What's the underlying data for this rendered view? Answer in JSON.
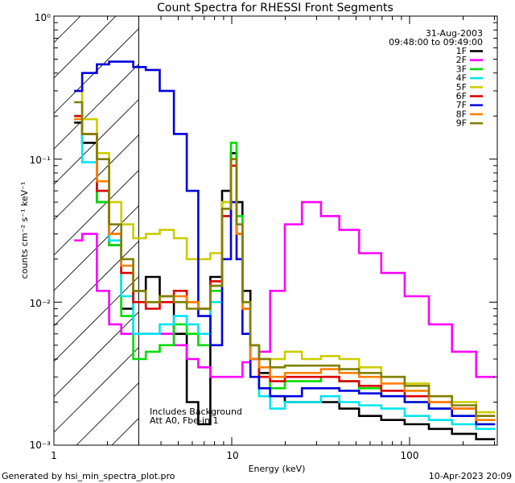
{
  "chart_data": {
    "type": "line",
    "title": "Count Spectra for RHESSI Front Segments",
    "xlabel": "Energy (keV)",
    "ylabel": "counts cm⁻² s⁻¹ keV⁻¹",
    "xscale": "log",
    "yscale": "log",
    "xlim": [
      1.2,
      300
    ],
    "ylim": [
      0.001,
      1.0
    ],
    "x_tick_labels": [
      "1",
      "10",
      "100"
    ],
    "y_tick_labels": [
      "10⁻³",
      "10⁻²",
      "10⁻¹",
      "10⁰"
    ],
    "date": "31-Aug-2003",
    "time_range": "09:48:00 to 09:49:00",
    "annotation_line1": "Includes Background",
    "annotation_line2": "Att A0, Fbe-in 1",
    "hatched_region_keV": [
      1.2,
      3.0
    ],
    "series": [
      {
        "name": "1F",
        "color": "#000000",
        "x": [
          1.3,
          1.6,
          1.9,
          2.2,
          2.6,
          3.0,
          3.6,
          4.3,
          5.2,
          6.0,
          7.0,
          8.2,
          9.5,
          10.3,
          11.0,
          12.0,
          13.5,
          15.0,
          18.0,
          22.0,
          28.0,
          36.0,
          45.0,
          60.0,
          80.0,
          110.0,
          150.0,
          200.0,
          280.0
        ],
        "values": [
          0.18,
          0.13,
          0.05,
          0.025,
          0.009,
          0.012,
          0.015,
          0.011,
          0.006,
          0.002,
          0.0014,
          0.015,
          0.06,
          0.11,
          0.05,
          0.012,
          0.005,
          0.0032,
          0.0022,
          0.002,
          0.002,
          0.002,
          0.0018,
          0.0016,
          0.0015,
          0.0014,
          0.0013,
          0.0012,
          0.0011
        ]
      },
      {
        "name": "2F",
        "color": "#ff00ff",
        "x": [
          1.3,
          1.6,
          1.9,
          2.2,
          2.6,
          3.0,
          3.6,
          4.3,
          5.2,
          6.0,
          7.0,
          8.2,
          9.5,
          10.3,
          11.0,
          12.0,
          13.5,
          15.0,
          18.0,
          22.0,
          28.0,
          36.0,
          45.0,
          60.0,
          80.0,
          110.0,
          150.0,
          200.0,
          280.0
        ],
        "values": [
          0.027,
          0.03,
          0.012,
          0.007,
          0.006,
          0.006,
          0.006,
          0.006,
          0.005,
          0.004,
          0.0035,
          0.003,
          0.003,
          0.003,
          0.003,
          0.0038,
          0.004,
          0.0045,
          0.012,
          0.035,
          0.05,
          0.04,
          0.032,
          0.022,
          0.016,
          0.011,
          0.007,
          0.0045,
          0.003
        ]
      },
      {
        "name": "3F",
        "color": "#00dd00",
        "x": [
          1.3,
          1.6,
          1.9,
          2.2,
          2.6,
          3.0,
          3.6,
          4.3,
          5.2,
          6.0,
          7.0,
          8.2,
          9.5,
          10.3,
          11.0,
          12.0,
          13.5,
          15.0,
          18.0,
          22.0,
          28.0,
          36.0,
          45.0,
          60.0,
          80.0,
          110.0,
          150.0,
          200.0,
          280.0
        ],
        "values": [
          0.2,
          0.15,
          0.05,
          0.025,
          0.008,
          0.004,
          0.0045,
          0.005,
          0.007,
          0.006,
          0.005,
          0.012,
          0.05,
          0.13,
          0.04,
          0.01,
          0.005,
          0.003,
          0.0025,
          0.0028,
          0.0028,
          0.003,
          0.0028,
          0.0025,
          0.0022,
          0.002,
          0.0018,
          0.0016,
          0.0014
        ]
      },
      {
        "name": "4F",
        "color": "#00e5ee",
        "x": [
          1.3,
          1.6,
          1.9,
          2.2,
          2.6,
          3.0,
          3.6,
          4.3,
          5.2,
          6.0,
          7.0,
          8.2,
          9.5,
          10.3,
          11.0,
          12.0,
          13.5,
          15.0,
          18.0,
          22.0,
          28.0,
          36.0,
          45.0,
          60.0,
          80.0,
          110.0,
          150.0,
          200.0,
          280.0
        ],
        "values": [
          0.2,
          0.095,
          0.06,
          0.027,
          0.011,
          0.006,
          0.006,
          0.007,
          0.008,
          0.007,
          0.006,
          0.01,
          0.04,
          0.09,
          0.03,
          0.009,
          0.004,
          0.0022,
          0.0018,
          0.002,
          0.002,
          0.0022,
          0.002,
          0.0019,
          0.0018,
          0.0016,
          0.0015,
          0.0014,
          0.0013
        ]
      },
      {
        "name": "5F",
        "color": "#cccc00",
        "x": [
          1.3,
          1.6,
          1.9,
          2.2,
          2.6,
          3.0,
          3.6,
          4.3,
          5.2,
          6.0,
          7.0,
          8.2,
          9.5,
          10.3,
          11.0,
          12.0,
          13.5,
          15.0,
          18.0,
          22.0,
          28.0,
          36.0,
          45.0,
          60.0,
          80.0,
          110.0,
          150.0,
          200.0,
          280.0
        ],
        "values": [
          0.3,
          0.19,
          0.11,
          0.05,
          0.035,
          0.028,
          0.03,
          0.032,
          0.028,
          0.02,
          0.02,
          0.022,
          0.05,
          0.1,
          0.03,
          0.009,
          0.005,
          0.004,
          0.004,
          0.0045,
          0.004,
          0.0042,
          0.004,
          0.0035,
          0.003,
          0.0027,
          0.0022,
          0.002,
          0.0017
        ]
      },
      {
        "name": "6F",
        "color": "#dd0000",
        "x": [
          1.3,
          1.6,
          1.9,
          2.2,
          2.6,
          3.0,
          3.6,
          4.3,
          5.2,
          6.0,
          7.0,
          8.2,
          9.5,
          10.3,
          11.0,
          12.0,
          13.5,
          15.0,
          18.0,
          22.0,
          28.0,
          36.0,
          45.0,
          60.0,
          80.0,
          110.0,
          150.0,
          200.0,
          280.0
        ],
        "values": [
          0.2,
          0.15,
          0.06,
          0.03,
          0.016,
          0.01,
          0.009,
          0.01,
          0.012,
          0.01,
          0.009,
          0.014,
          0.04,
          0.09,
          0.03,
          0.009,
          0.004,
          0.003,
          0.0028,
          0.003,
          0.003,
          0.003,
          0.0028,
          0.0026,
          0.0024,
          0.0022,
          0.002,
          0.0018,
          0.0016
        ]
      },
      {
        "name": "7F",
        "color": "#0000dd",
        "x": [
          1.3,
          1.6,
          1.9,
          2.2,
          2.6,
          3.0,
          3.6,
          4.3,
          5.2,
          6.0,
          7.0,
          8.2,
          9.5,
          10.3,
          11.0,
          12.0,
          13.5,
          15.0,
          18.0,
          22.0,
          28.0,
          36.0,
          45.0,
          60.0,
          80.0,
          110.0,
          150.0,
          200.0,
          280.0
        ],
        "values": [
          0.3,
          0.4,
          0.46,
          0.48,
          0.48,
          0.44,
          0.42,
          0.3,
          0.15,
          0.06,
          0.008,
          0.005,
          0.02,
          0.05,
          0.02,
          0.006,
          0.003,
          0.0025,
          0.0022,
          0.0022,
          0.0025,
          0.0025,
          0.0024,
          0.0023,
          0.0022,
          0.002,
          0.0018,
          0.0016,
          0.0014
        ]
      },
      {
        "name": "8F",
        "color": "#ff8000",
        "x": [
          1.3,
          1.6,
          1.9,
          2.2,
          2.6,
          3.0,
          3.6,
          4.3,
          5.2,
          6.0,
          7.0,
          8.2,
          9.5,
          10.3,
          11.0,
          12.0,
          13.5,
          15.0,
          18.0,
          22.0,
          28.0,
          36.0,
          45.0,
          60.0,
          80.0,
          110.0,
          150.0,
          200.0,
          280.0
        ],
        "values": [
          0.19,
          0.15,
          0.07,
          0.03,
          0.018,
          0.012,
          0.01,
          0.011,
          0.011,
          0.01,
          0.009,
          0.013,
          0.045,
          0.1,
          0.03,
          0.009,
          0.004,
          0.0035,
          0.003,
          0.0032,
          0.0032,
          0.0034,
          0.0032,
          0.003,
          0.0027,
          0.0024,
          0.002,
          0.0018,
          0.0015
        ]
      },
      {
        "name": "9F",
        "color": "#808000",
        "x": [
          1.3,
          1.6,
          1.9,
          2.2,
          2.6,
          3.0,
          3.6,
          4.3,
          5.2,
          6.0,
          7.0,
          8.2,
          9.5,
          10.3,
          11.0,
          12.0,
          13.5,
          15.0,
          18.0,
          22.0,
          28.0,
          36.0,
          45.0,
          60.0,
          80.0,
          110.0,
          150.0,
          200.0,
          280.0
        ],
        "values": [
          0.25,
          0.15,
          0.1,
          0.035,
          0.02,
          0.012,
          0.01,
          0.011,
          0.01,
          0.009,
          0.009,
          0.013,
          0.045,
          0.1,
          0.035,
          0.01,
          0.005,
          0.004,
          0.0035,
          0.0036,
          0.0036,
          0.0036,
          0.0034,
          0.0032,
          0.003,
          0.0026,
          0.0022,
          0.0019,
          0.0016
        ]
      }
    ]
  },
  "footer": {
    "generated_by": "Generated by hsi_min_spectra_plot.pro",
    "timestamp": "10-Apr-2023 20:09"
  }
}
